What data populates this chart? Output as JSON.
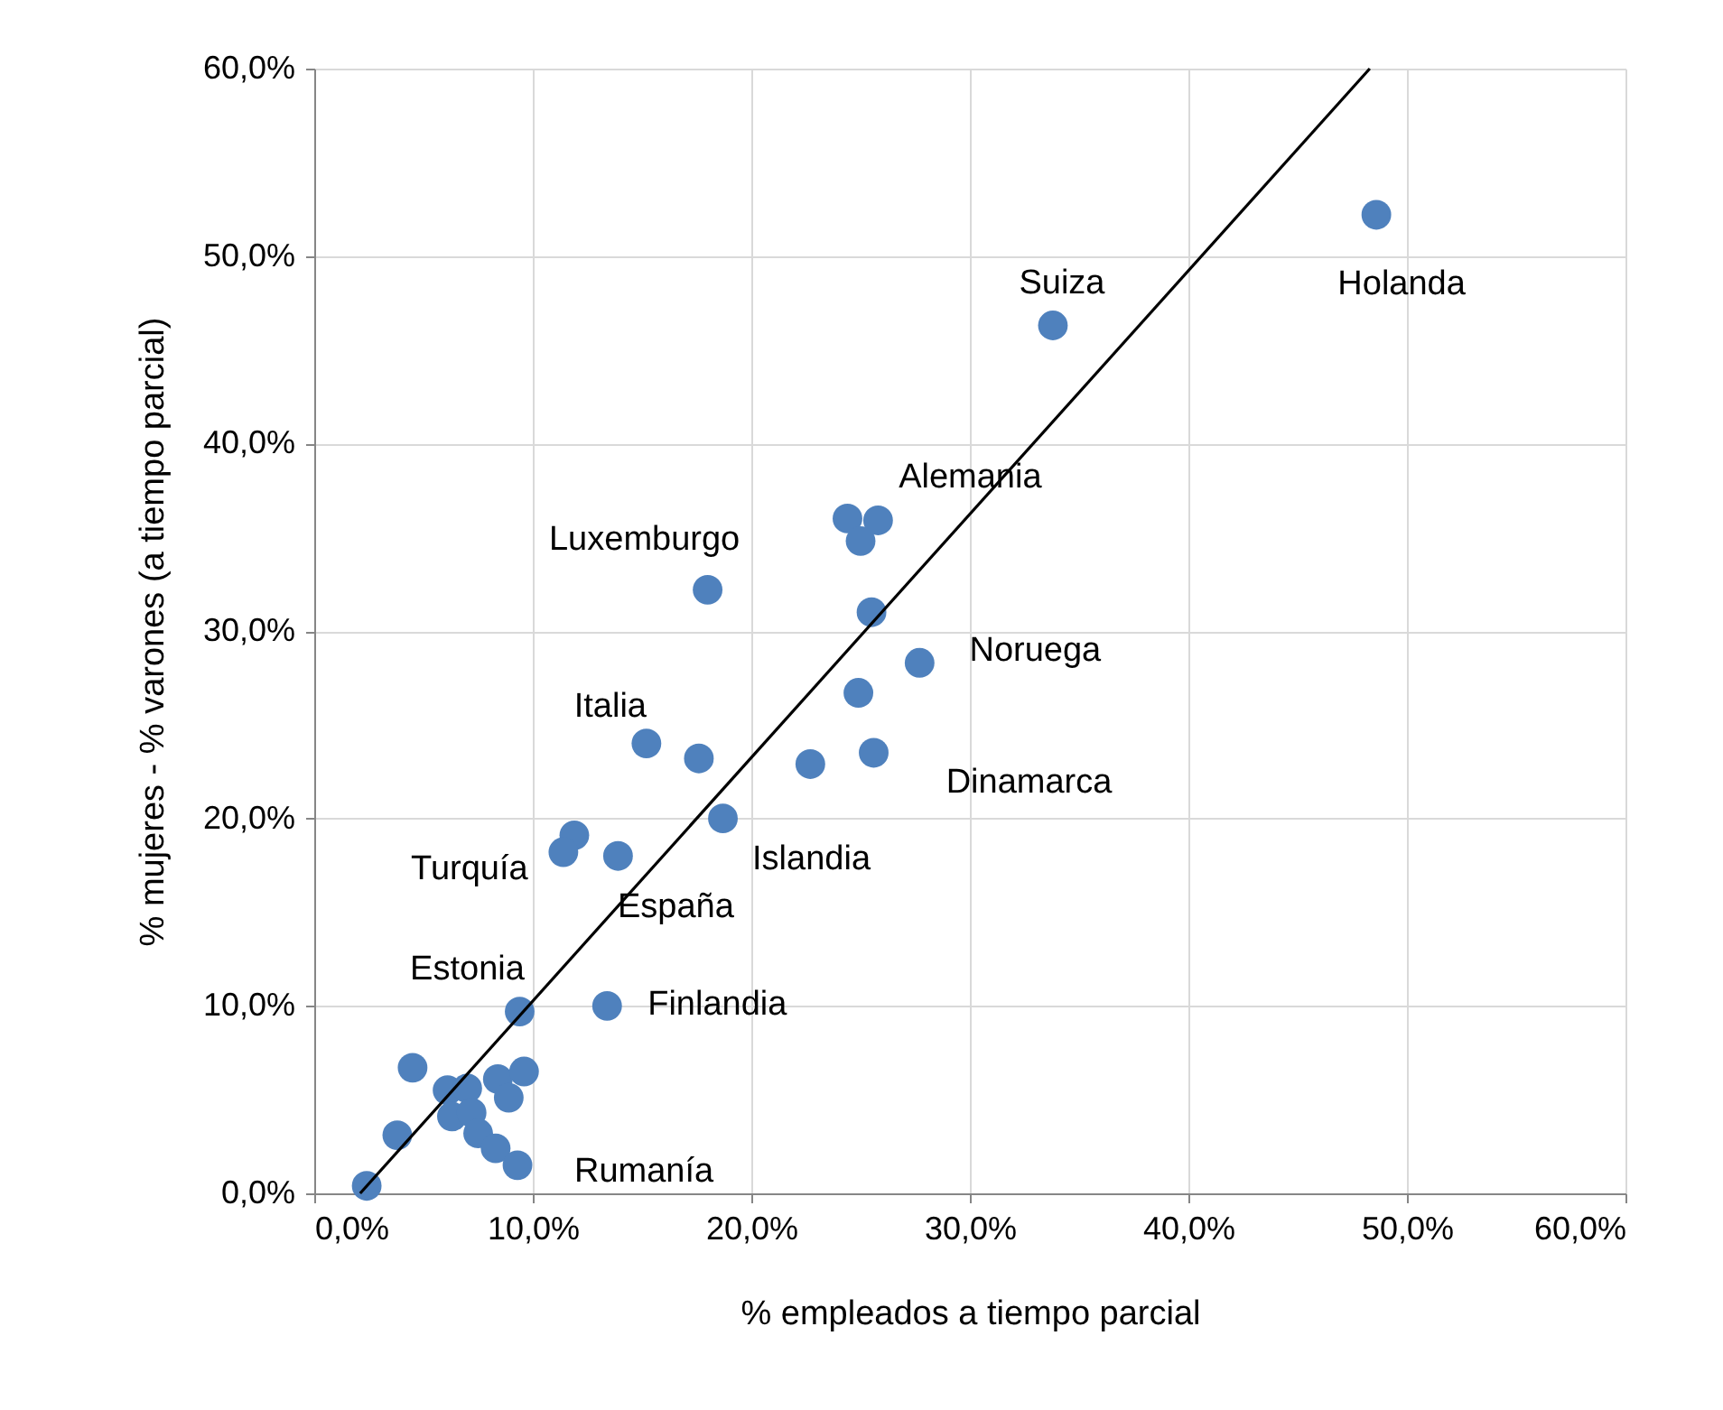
{
  "chart_data": {
    "type": "scatter",
    "xlabel": "% empleados a tiempo parcial",
    "ylabel": "% mujeres - % varones (a tiempo parcial)",
    "xlim": [
      0,
      60
    ],
    "ylim": [
      0,
      60
    ],
    "xticks": [
      {
        "value": 0,
        "label": "0,0%"
      },
      {
        "value": 10,
        "label": "10,0%"
      },
      {
        "value": 20,
        "label": "20,0%"
      },
      {
        "value": 30,
        "label": "30,0%"
      },
      {
        "value": 40,
        "label": "40,0%"
      },
      {
        "value": 50,
        "label": "50,0%"
      },
      {
        "value": 60,
        "label": "60,0%"
      }
    ],
    "yticks": [
      {
        "value": 0,
        "label": "0,0%"
      },
      {
        "value": 10,
        "label": "10,0%"
      },
      {
        "value": 20,
        "label": "20,0%"
      },
      {
        "value": 30,
        "label": "30,0%"
      },
      {
        "value": 40,
        "label": "40,0%"
      },
      {
        "value": 50,
        "label": "50,0%"
      },
      {
        "value": 60,
        "label": "60,0%"
      }
    ],
    "grid": true,
    "series": [
      {
        "color": "#4f81bd",
        "marker": "circle",
        "x": [
          2.4,
          3.8,
          4.5,
          6.1,
          7.0,
          6.3,
          7.2,
          7.5,
          8.3,
          9.3,
          8.4,
          9.6,
          8.9,
          9.4,
          13.4,
          18.0,
          24.4,
          25.8,
          25.0,
          25.5,
          27.7,
          24.9,
          25.6,
          22.7,
          15.2,
          17.6,
          18.7,
          11.9,
          11.4,
          13.9,
          33.8,
          48.6
        ],
        "values": [
          0.4,
          3.1,
          6.7,
          5.5,
          5.6,
          4.1,
          4.3,
          3.2,
          2.4,
          1.5,
          6.1,
          6.5,
          5.1,
          9.7,
          10.0,
          32.2,
          36.0,
          35.9,
          34.8,
          31.0,
          28.3,
          26.7,
          23.5,
          22.9,
          24.0,
          23.2,
          20.0,
          19.1,
          18.2,
          18.0,
          46.3,
          52.2
        ]
      },
      {
        "type": "line",
        "color": "#000000",
        "marker": "none",
        "line_style": "solid",
        "x": [
          2.1,
          48.3
        ],
        "values": [
          0,
          60
        ]
      }
    ],
    "annotations": [
      {
        "text": "Suiza",
        "x": 33.8,
        "y": 46.3
      },
      {
        "text": "Holanda",
        "x": 48.6,
        "y": 52.2
      },
      {
        "text": "Alemania",
        "x": 25.8,
        "y": 35.9
      },
      {
        "text": "Luxemburgo",
        "x": 18.0,
        "y": 32.2
      },
      {
        "text": "Noruega",
        "x": 27.7,
        "y": 28.3
      },
      {
        "text": "Italia",
        "x": 15.2,
        "y": 24.0
      },
      {
        "text": "Dinamarca",
        "x": 25.6,
        "y": 23.5
      },
      {
        "text": "Islandia",
        "x": 18.7,
        "y": 20.0
      },
      {
        "text": "Turquía",
        "x": 11.4,
        "y": 18.2
      },
      {
        "text": "España",
        "x": 13.9,
        "y": 18.0
      },
      {
        "text": "Estonia",
        "x": 9.4,
        "y": 9.7
      },
      {
        "text": "Finlandia",
        "x": 13.4,
        "y": 10.0
      },
      {
        "text": "Rumanía",
        "x": 9.3,
        "y": 1.5
      }
    ]
  }
}
